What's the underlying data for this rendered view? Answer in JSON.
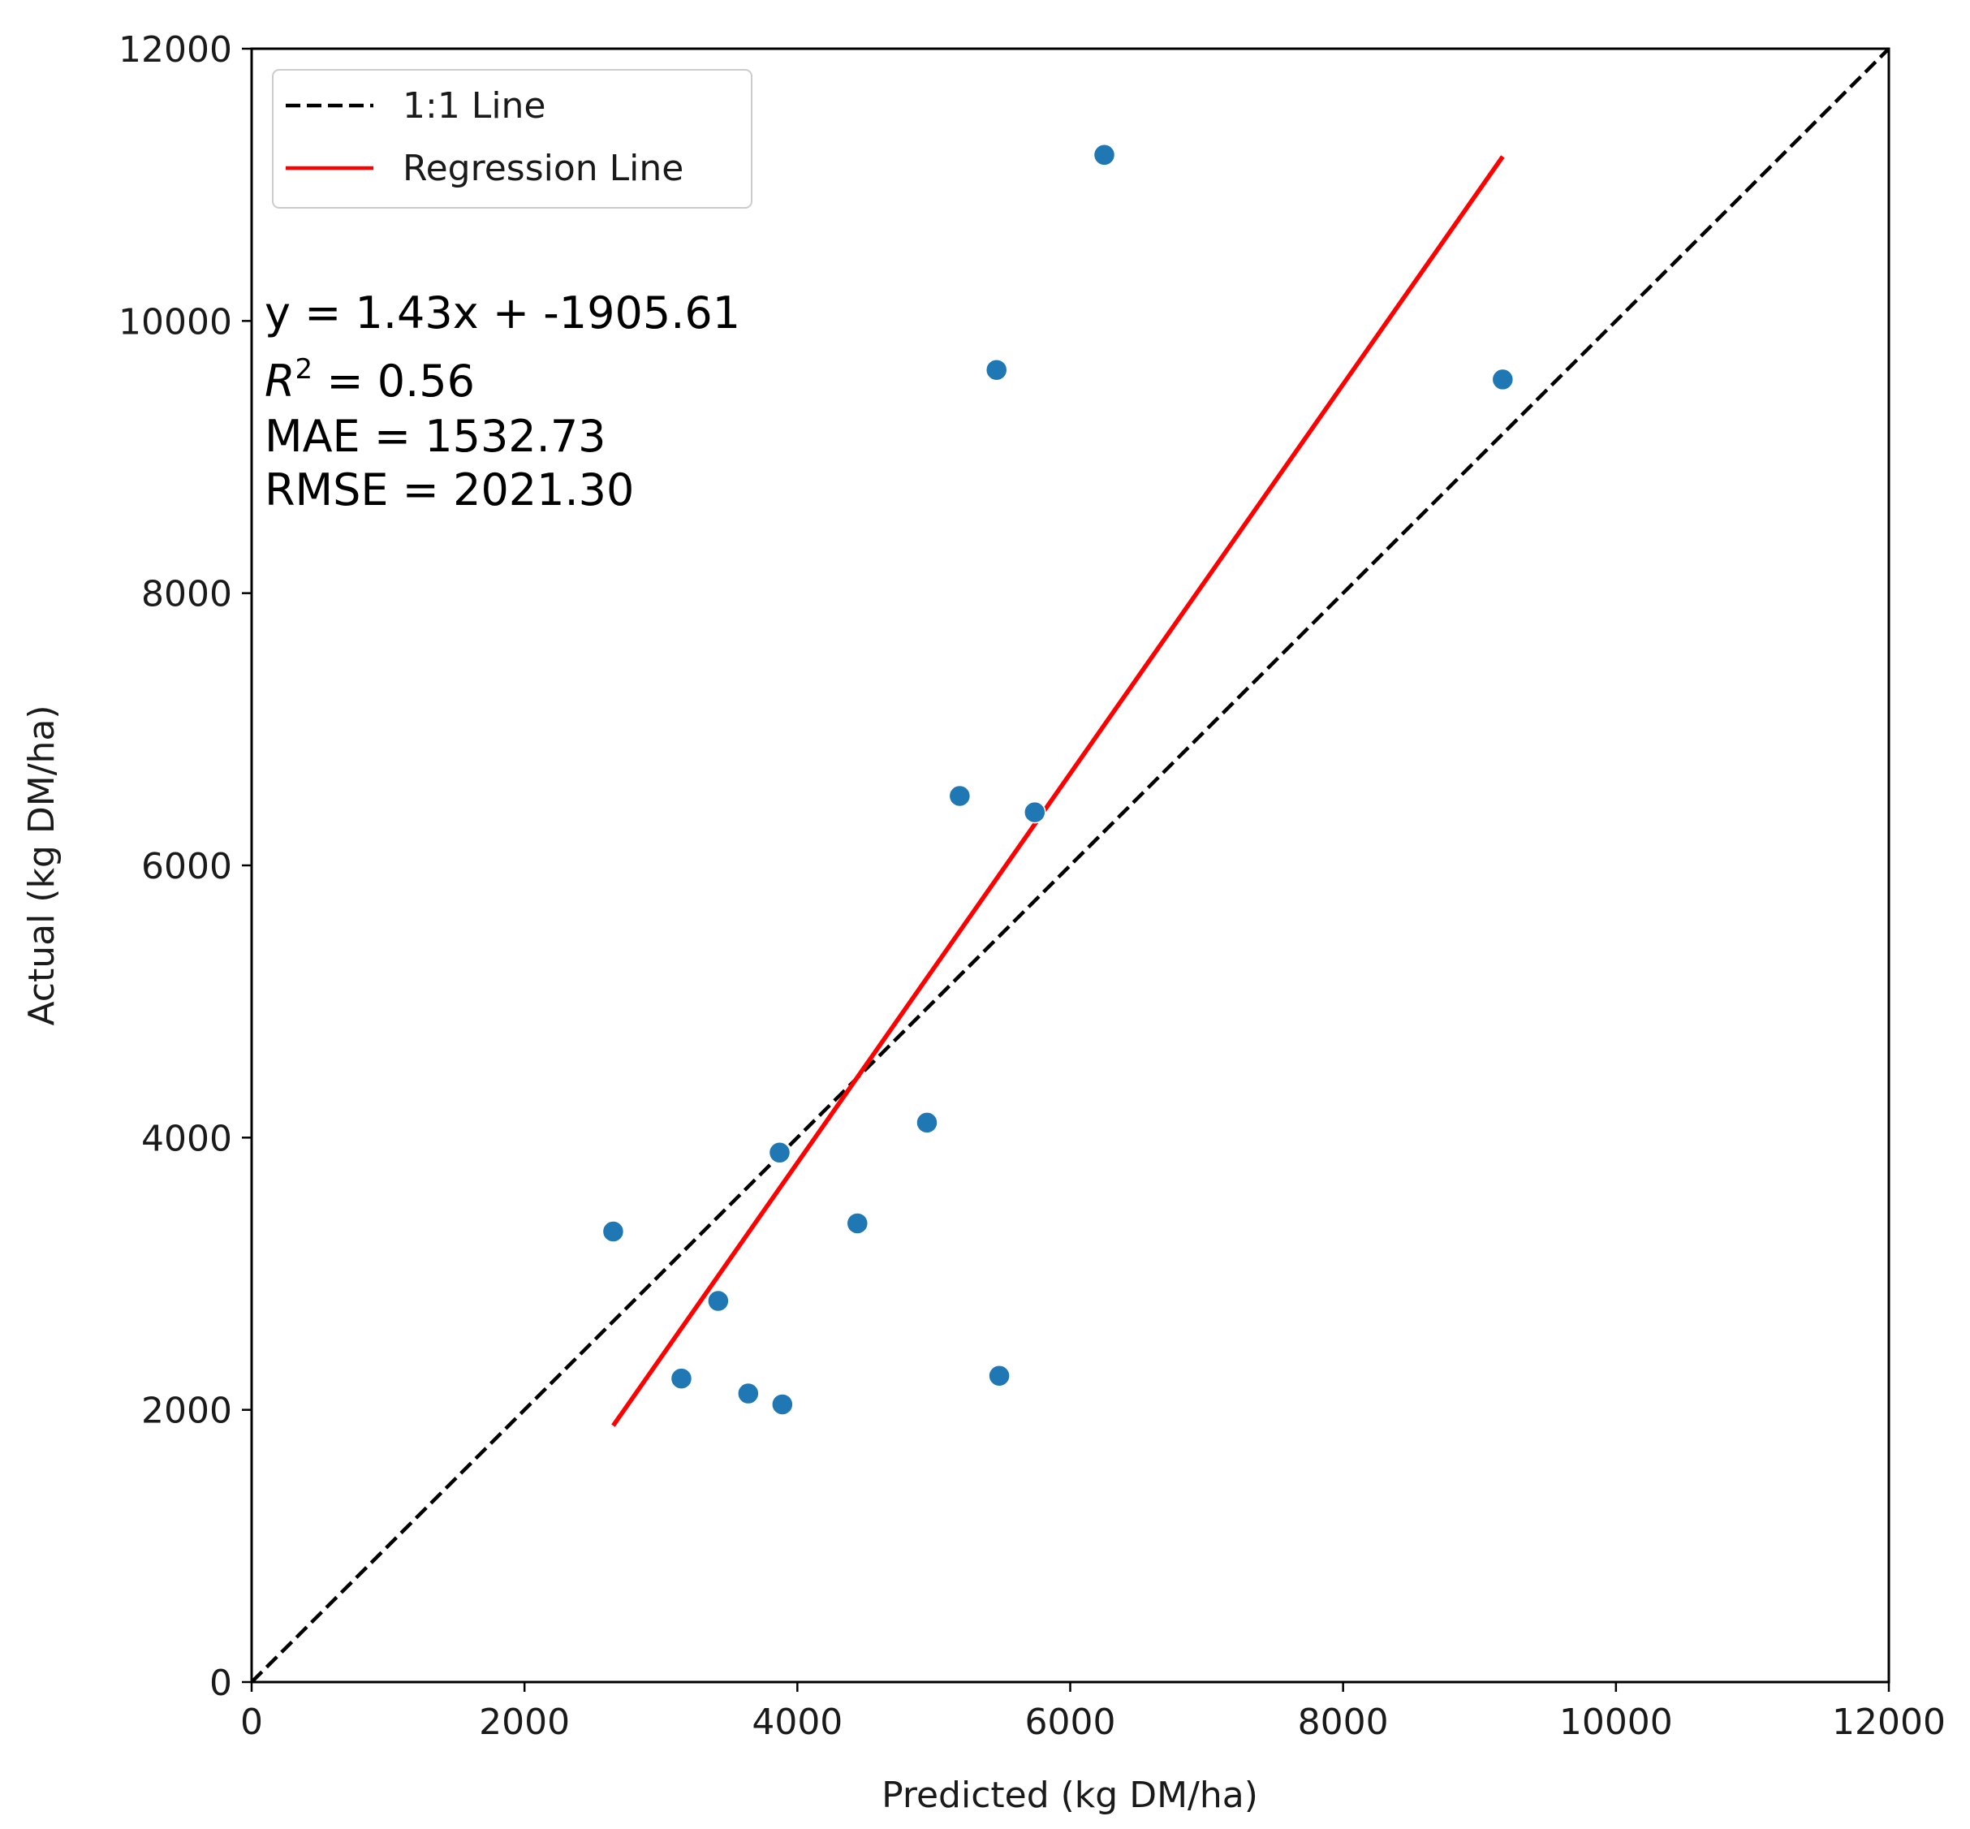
{
  "chart_data": {
    "type": "scatter",
    "title": "",
    "xlabel": "Predicted (kg DM/ha)",
    "ylabel": "Actual (kg DM/ha)",
    "xlim": [
      0,
      12000
    ],
    "ylim": [
      0,
      12000
    ],
    "x_ticks": [
      "0",
      "2000",
      "4000",
      "6000",
      "8000",
      "10000",
      "12000"
    ],
    "y_ticks": [
      "0",
      "2000",
      "4000",
      "6000",
      "8000",
      "10000",
      "12000"
    ],
    "grid": false,
    "legend_position": "top-left",
    "legend": [
      {
        "label": "1:1 Line",
        "style": "dashed",
        "color": "#000000"
      },
      {
        "label": "Regression Line",
        "style": "solid",
        "color": "#ff0000"
      }
    ],
    "points": {
      "color": "#1f77b4",
      "x": [
        2650,
        3150,
        3420,
        3640,
        3870,
        3890,
        4440,
        4950,
        5190,
        5460,
        5480,
        5740,
        6250,
        9170
      ],
      "y": [
        3310,
        2230,
        2800,
        2120,
        3890,
        2040,
        3370,
        4110,
        6510,
        9640,
        2250,
        6390,
        11220,
        9570
      ]
    },
    "identity_line": {
      "x": [
        0,
        12000
      ],
      "y": [
        0,
        12000
      ]
    },
    "regression_line": {
      "x": [
        2650,
        9170
      ],
      "y": [
        1883.9,
        11207.5
      ]
    },
    "annotations": {
      "equation": "y = 1.43x + -1905.61",
      "r2_label": "R",
      "r2_sup": "2",
      "r2_value": " = 0.56",
      "mae": "MAE = 1532.73",
      "rmse": "RMSE = 2021.30"
    }
  }
}
